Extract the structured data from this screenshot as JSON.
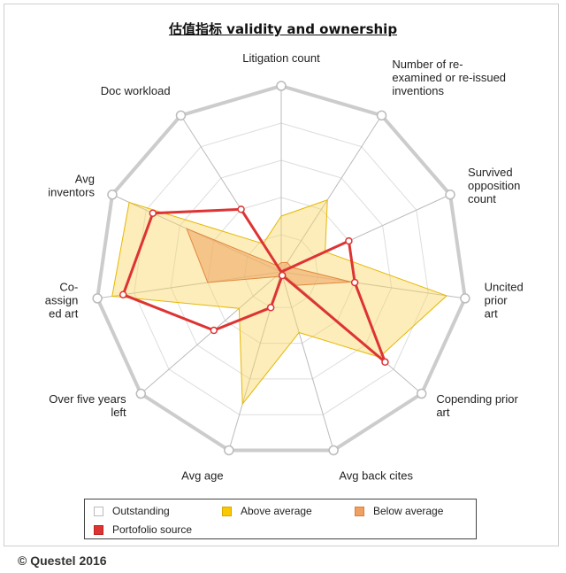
{
  "chart_data": {
    "type": "radar",
    "title": "估值指标 validity and ownership",
    "axes": [
      "Litigation count",
      "Number of re-examined or re-issued inventions",
      "Survived opposition count",
      "Uncited prior art",
      "Copending prior art",
      "Avg back cites",
      "Avg age",
      "Over five years left",
      "Co-assigned art",
      "Avg inventors",
      "Doc workload"
    ],
    "axis_label_lines": [
      [
        "Litigation count"
      ],
      [
        "Number of re-",
        "examined or re-issued",
        "inventions"
      ],
      [
        "Survived",
        "opposition",
        "count"
      ],
      [
        "Uncited",
        "prior",
        "art"
      ],
      [
        "Copending prior",
        "art"
      ],
      [
        "Avg back cites"
      ],
      [
        "Avg age"
      ],
      [
        "Over five years",
        "left"
      ],
      [
        "Co-",
        "assign",
        "ed art"
      ],
      [
        "Avg",
        "inventors"
      ],
      [
        "Doc workload"
      ]
    ],
    "range": [
      0,
      5
    ],
    "grid_levels": 5,
    "series": [
      {
        "name": "Outstanding",
        "color": "#ffffff",
        "stroke": "#cccccc",
        "values": [
          5,
          5,
          5,
          5,
          5,
          5,
          5,
          5,
          5,
          5,
          5
        ]
      },
      {
        "name": "Above average",
        "color": "#f8d866",
        "stroke": "#e6b800",
        "values": [
          1.5,
          2.3,
          1.3,
          4.5,
          3.5,
          1.7,
          3.7,
          1.5,
          4.6,
          4.5,
          0.9
        ]
      },
      {
        "name": "Below average",
        "color": "#f0a868",
        "stroke": "#e08a40",
        "values": [
          0.25,
          0.3,
          0.3,
          1.9,
          0.55,
          0.15,
          0.15,
          0.2,
          2.0,
          2.8,
          0.2
        ]
      },
      {
        "name": "Portofolio source",
        "color": "#dd3333",
        "stroke": "#dd3333",
        "values": [
          0,
          0,
          2.0,
          2.0,
          3.7,
          0.1,
          1.0,
          2.4,
          4.3,
          3.8,
          2.0
        ]
      }
    ]
  },
  "legend": {
    "items": [
      {
        "label": "Outstanding",
        "swatch": "#ffffff",
        "border": "#bbbbbb"
      },
      {
        "label": "Above average",
        "swatch": "#f8c800",
        "border": "#d8a800"
      },
      {
        "label": "Below average",
        "swatch": "#f0a060",
        "border": "#d08040"
      },
      {
        "label": "Portofolio source",
        "swatch": "#dd3333",
        "border": "#bb2222"
      }
    ]
  },
  "footer": {
    "copyright": "© Questel 2016"
  }
}
